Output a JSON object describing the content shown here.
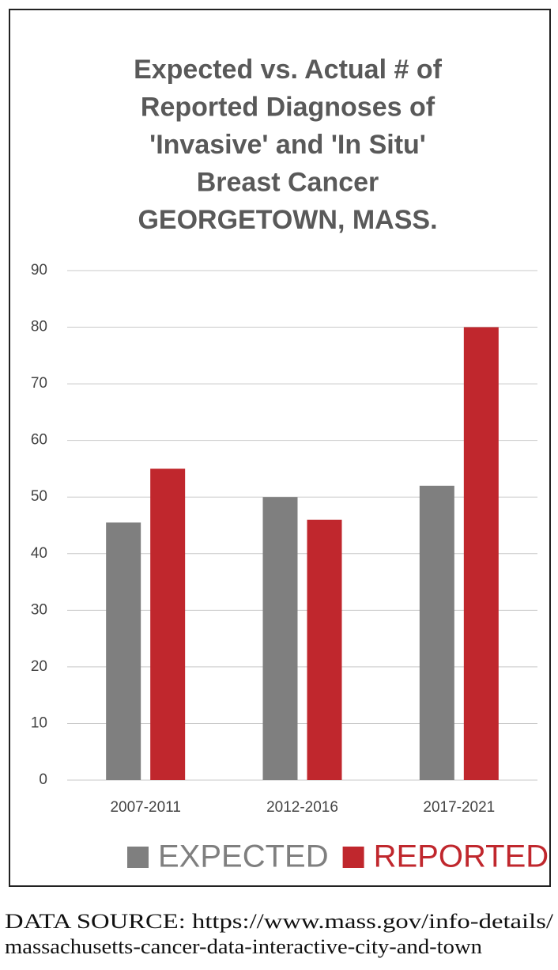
{
  "chart_data": {
    "type": "bar",
    "title": [
      "Expected vs. Actual # of",
      "Reported Diagnoses of",
      "'Invasive' and 'In Situ'",
      "Breast Cancer",
      "GEORGETOWN, MASS."
    ],
    "categories": [
      "2007-2011",
      "2012-2016",
      "2017-2021"
    ],
    "series": [
      {
        "name": "EXPECTED",
        "color": "#7f7f7f",
        "values": [
          45.5,
          50,
          52
        ]
      },
      {
        "name": "REPORTED",
        "color": "#c0272d",
        "values": [
          55,
          46,
          80
        ]
      }
    ],
    "ylim": [
      0,
      90
    ],
    "yticks": [
      0,
      10,
      20,
      30,
      40,
      50,
      60,
      70,
      80,
      90
    ],
    "grid": true,
    "legend": "bottom",
    "source": [
      "DATA SOURCE:   https://www.mass.gov/info-details/",
      "massachusetts-cancer-data-interactive-city-and-town"
    ]
  }
}
